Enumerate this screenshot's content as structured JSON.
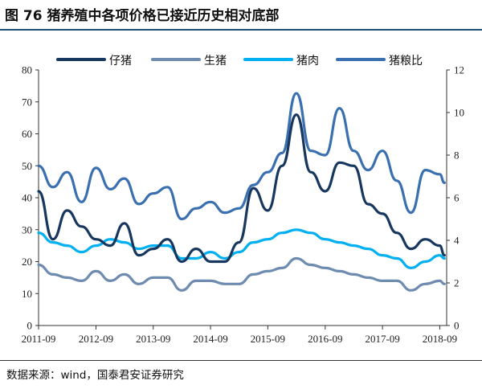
{
  "title": "图 76 猪养殖中各项价格已接近历史相对底部",
  "source": "数据来源：wind，国泰君安证券研究",
  "chart_data": {
    "type": "line",
    "title": "",
    "xlabel": "",
    "ylabel": "",
    "x_ticks": [
      "2011-09",
      "2012-09",
      "2013-09",
      "2014-09",
      "2015-09",
      "2016-09",
      "2017-09",
      "2018-09"
    ],
    "y_left": {
      "range": [
        0,
        80
      ],
      "ticks": [
        0,
        10,
        20,
        30,
        40,
        50,
        60,
        70,
        80
      ]
    },
    "y_right": {
      "range": [
        0,
        12
      ],
      "ticks": [
        0,
        2,
        4,
        6,
        8,
        10,
        12
      ]
    },
    "legend": {
      "placement": "top"
    },
    "colors": {
      "piglet": "#17375e",
      "hog": "#6e8bb0",
      "pork": "#00b0f0",
      "ratio": "#3a6fb0"
    },
    "x_dates": [
      "2011-09",
      "2011-12",
      "2012-03",
      "2012-06",
      "2012-09",
      "2012-12",
      "2013-03",
      "2013-06",
      "2013-09",
      "2013-12",
      "2014-03",
      "2014-06",
      "2014-09",
      "2014-12",
      "2015-03",
      "2015-06",
      "2015-09",
      "2015-12",
      "2016-03",
      "2016-06",
      "2016-09",
      "2016-12",
      "2017-03",
      "2017-06",
      "2017-09",
      "2017-12",
      "2018-03",
      "2018-06",
      "2018-09",
      "2018-10"
    ],
    "series": [
      {
        "name": "仔猪",
        "axis": "left",
        "color_key": "piglet",
        "values": [
          42,
          27,
          36,
          31,
          27,
          25,
          32,
          22,
          24,
          27,
          20,
          24,
          20,
          20,
          26,
          43,
          36,
          50,
          66,
          48,
          42,
          51,
          50,
          38,
          35,
          29,
          24,
          27,
          25,
          22
        ]
      },
      {
        "name": "生猪",
        "axis": "left",
        "color_key": "hog",
        "values": [
          19,
          16,
          15,
          14,
          17,
          14,
          16,
          13,
          15,
          15,
          11,
          14,
          14,
          13,
          13,
          16,
          17,
          18,
          21,
          19,
          18,
          17,
          16,
          15,
          14,
          14,
          11,
          13,
          14,
          13
        ]
      },
      {
        "name": "猪肉",
        "axis": "left",
        "color_key": "pork",
        "values": [
          29,
          26,
          25,
          23,
          25,
          27,
          26,
          24,
          25,
          25,
          21,
          21,
          23,
          21,
          23,
          26,
          27,
          29,
          30,
          29,
          27,
          26,
          25,
          24,
          22,
          21,
          18,
          20,
          22,
          21
        ]
      },
      {
        "name": "猪粮比",
        "axis": "right",
        "color_key": "ratio",
        "values": [
          7.5,
          6.5,
          7.2,
          5.8,
          7.4,
          6.4,
          6.9,
          5.7,
          6.2,
          6.5,
          5.0,
          5.5,
          5.8,
          5.3,
          5.5,
          6.6,
          7.2,
          8.1,
          10.9,
          8.2,
          8.0,
          10.2,
          8.2,
          7.3,
          8.2,
          6.8,
          5.3,
          7.3,
          7.1,
          6.7
        ]
      }
    ]
  }
}
